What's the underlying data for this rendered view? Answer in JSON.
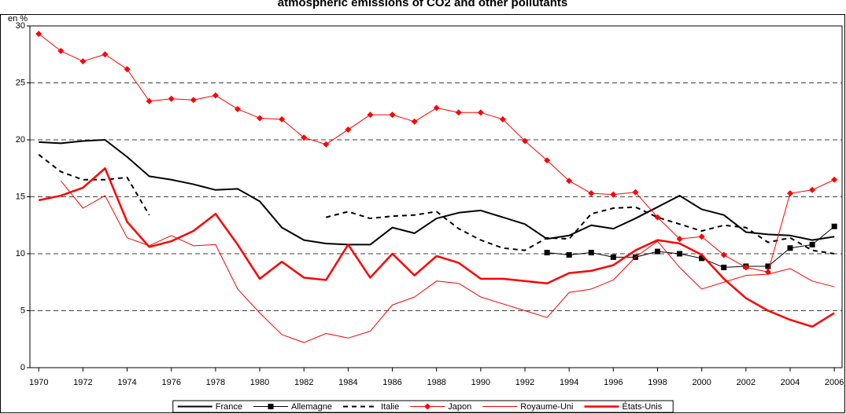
{
  "chart_data": {
    "type": "line",
    "title": "atmospheric emissions of CO2 and other pollutants",
    "y_label": "en %",
    "x": [
      1970,
      1971,
      1972,
      1973,
      1974,
      1975,
      1976,
      1977,
      1978,
      1979,
      1980,
      1981,
      1982,
      1983,
      1984,
      1985,
      1986,
      1987,
      1988,
      1989,
      1990,
      1991,
      1992,
      1993,
      1994,
      1995,
      1996,
      1997,
      1998,
      1999,
      2000,
      2001,
      2002,
      2003,
      2004,
      2005,
      2006
    ],
    "xlim": [
      1969.6,
      2006.35
    ],
    "xticks": [
      1970,
      1972,
      1974,
      1976,
      1978,
      1980,
      1982,
      1984,
      1986,
      1988,
      1990,
      1992,
      1994,
      1996,
      1998,
      2000,
      2002,
      2004,
      2006
    ],
    "ylim": [
      0,
      30
    ],
    "yticks": [
      0,
      5,
      10,
      15,
      20,
      25,
      30
    ],
    "grid": true,
    "legend": "bottom",
    "series": [
      {
        "name": "France",
        "color": "#000000",
        "width": 2,
        "dash": false,
        "marker": "none",
        "values": [
          19.8,
          19.7,
          19.9,
          20.0,
          18.5,
          16.8,
          16.5,
          16.1,
          15.6,
          15.7,
          14.6,
          12.3,
          11.2,
          10.9,
          10.8,
          10.8,
          12.3,
          11.8,
          13.1,
          13.6,
          13.8,
          13.2,
          12.6,
          11.3,
          11.6,
          12.5,
          12.2,
          13.1,
          14.1,
          15.1,
          13.9,
          13.4,
          11.9,
          11.7,
          11.6,
          11.2,
          11.5
        ]
      },
      {
        "name": "Allemagne",
        "color": "#000000",
        "width": 1,
        "dash": false,
        "marker": "square",
        "values": [
          null,
          null,
          null,
          null,
          null,
          null,
          null,
          null,
          null,
          null,
          null,
          null,
          null,
          null,
          null,
          null,
          null,
          null,
          null,
          null,
          null,
          null,
          null,
          10.1,
          9.9,
          10.1,
          9.7,
          9.7,
          10.2,
          10.0,
          9.6,
          8.8,
          8.9,
          8.9,
          10.5,
          10.8,
          12.4
        ]
      },
      {
        "name": "Italie",
        "color": "#000000",
        "width": 2,
        "dash": true,
        "marker": "none",
        "values": [
          18.7,
          17.2,
          16.5,
          16.5,
          16.7,
          13.4,
          null,
          null,
          null,
          null,
          null,
          null,
          null,
          13.2,
          13.7,
          13.1,
          13.3,
          13.4,
          13.7,
          12.2,
          11.2,
          10.5,
          10.3,
          11.4,
          11.3,
          13.5,
          14.0,
          14.1,
          13.2,
          12.6,
          12.0,
          12.5,
          12.3,
          11.0,
          11.4,
          10.3,
          10.0
        ]
      },
      {
        "name": "Japon",
        "color": "#ff0000",
        "width": 1,
        "dash": false,
        "marker": "diamond",
        "values": [
          29.3,
          27.8,
          26.9,
          27.5,
          26.2,
          23.4,
          23.6,
          23.5,
          23.9,
          22.7,
          21.9,
          21.8,
          20.2,
          19.6,
          20.9,
          22.2,
          22.2,
          21.6,
          22.8,
          22.4,
          22.4,
          21.8,
          19.9,
          18.2,
          16.4,
          15.3,
          15.2,
          15.4,
          13.2,
          11.3,
          11.5,
          9.9,
          8.8,
          8.4,
          15.3,
          15.6,
          16.5
        ]
      },
      {
        "name": "Royaume-Uni",
        "color": "#ff0000",
        "width": 1,
        "dash": false,
        "marker": "none",
        "values": [
          null,
          16.4,
          14.0,
          15.1,
          11.4,
          10.7,
          11.6,
          10.7,
          10.8,
          6.9,
          4.8,
          2.9,
          2.2,
          3.0,
          2.6,
          3.2,
          5.5,
          6.2,
          7.6,
          7.4,
          6.2,
          5.6,
          5.0,
          4.4,
          6.6,
          6.9,
          7.7,
          9.7,
          11.1,
          8.8,
          6.9,
          7.5,
          8.1,
          8.2,
          8.7,
          7.6,
          7.1
        ]
      },
      {
        "name": "États-Unis",
        "color": "#ff0000",
        "width": 2.5,
        "dash": false,
        "marker": "none",
        "values": [
          14.7,
          15.1,
          15.8,
          17.5,
          12.8,
          10.6,
          11.1,
          12.0,
          13.5,
          10.8,
          7.8,
          9.3,
          7.9,
          7.7,
          10.8,
          7.9,
          10.0,
          8.1,
          9.8,
          9.2,
          7.8,
          7.8,
          7.6,
          7.4,
          8.3,
          8.5,
          9.0,
          10.3,
          11.2,
          10.9,
          9.9,
          7.8,
          6.1,
          5.0,
          4.2,
          3.6,
          4.8
        ]
      }
    ]
  }
}
